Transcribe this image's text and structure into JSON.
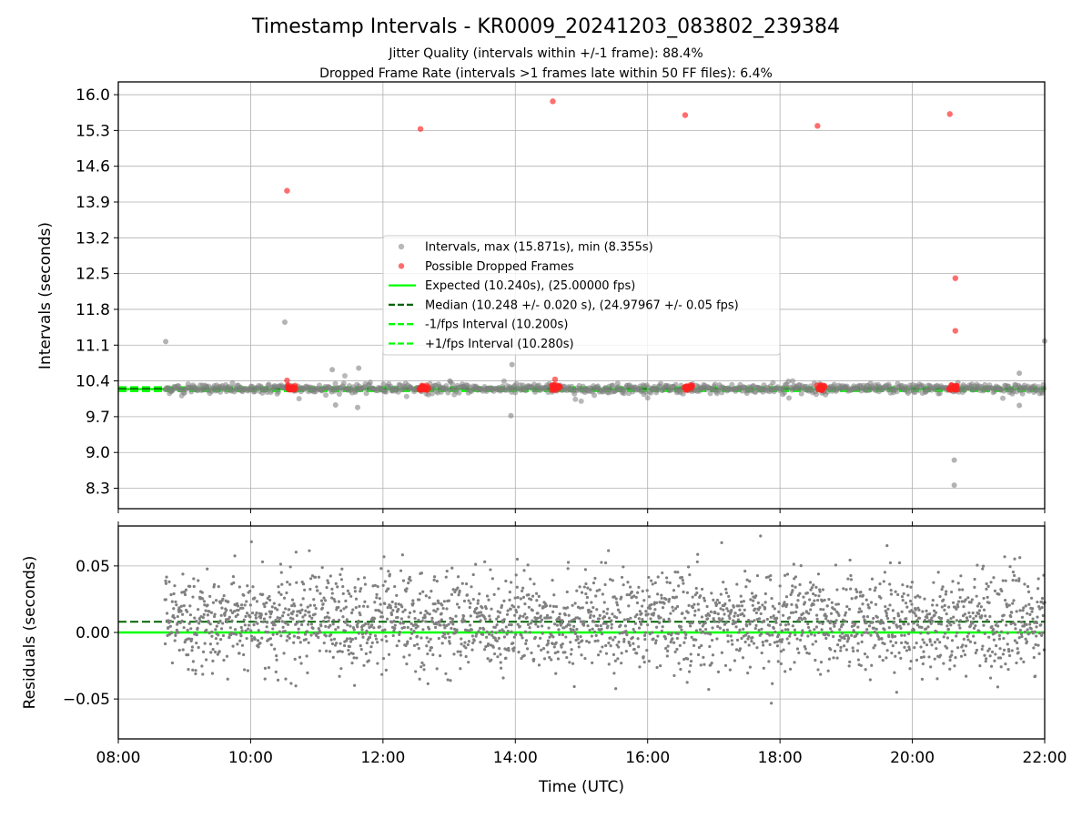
{
  "figure": {
    "title": "Timestamp Intervals - KR0009_20241203_083802_239384",
    "subtitle_1": "Jitter Quality (intervals within +/-1 frame): 88.4%",
    "subtitle_2": "Dropped Frame Rate (intervals >1 frames late within 50 FF files): 6.4%"
  },
  "chart_data": [
    {
      "type": "scatter",
      "panel": "intervals",
      "ylabel": "Intervals (seconds)",
      "xlim": [
        "08:00",
        "22:00"
      ],
      "ylim": [
        7.9,
        16.25
      ],
      "yticks": [
        "8.3",
        "9.0",
        "9.7",
        "10.4",
        "11.1",
        "11.8",
        "12.5",
        "13.2",
        "13.9",
        "14.6",
        "15.3",
        "16.0"
      ],
      "ytick_values": [
        8.3,
        9.0,
        9.7,
        10.4,
        11.1,
        11.8,
        12.5,
        13.2,
        13.9,
        14.6,
        15.3,
        16.0
      ],
      "xticks": [
        "08:00",
        "10:00",
        "12:00",
        "14:00",
        "16:00",
        "18:00",
        "20:00",
        "22:00"
      ],
      "grid": true,
      "legend_position": "center",
      "series": [
        {
          "name": "Intervals, max (15.871s), min (8.355s)",
          "kind": "scatter",
          "color": "#808080",
          "typical_value": 10.248,
          "time_range": [
            "08:42",
            "22:00"
          ],
          "notable_points": [
            {
              "x": "08:43",
              "y": 11.17
            },
            {
              "x": "10:31",
              "y": 11.55
            },
            {
              "x": "13:57",
              "y": 10.72
            },
            {
              "x": "13:56",
              "y": 9.72
            },
            {
              "x": "11:14",
              "y": 10.62
            },
            {
              "x": "11:38",
              "y": 10.65
            },
            {
              "x": "11:37",
              "y": 9.88
            },
            {
              "x": "11:17",
              "y": 9.93
            },
            {
              "x": "20:38",
              "y": 8.85
            },
            {
              "x": "20:38",
              "y": 8.36
            },
            {
              "x": "21:37",
              "y": 9.92
            },
            {
              "x": "21:37",
              "y": 10.55
            },
            {
              "x": "22:00",
              "y": 11.18
            }
          ]
        },
        {
          "name": "Possible Dropped Frames",
          "kind": "scatter",
          "color": "#ff2020",
          "points": [
            {
              "x": "10:33",
              "y": 14.12
            },
            {
              "x": "12:34",
              "y": 15.33
            },
            {
              "x": "14:34",
              "y": 15.87
            },
            {
              "x": "16:34",
              "y": 15.6
            },
            {
              "x": "18:34",
              "y": 15.39
            },
            {
              "x": "20:34",
              "y": 15.62
            },
            {
              "x": "20:39",
              "y": 12.41
            },
            {
              "x": "20:39",
              "y": 11.38
            },
            {
              "x": "10:33",
              "y": 10.41
            },
            {
              "x": "14:36",
              "y": 10.43
            }
          ],
          "clusters": [
            "10:37",
            "12:37",
            "14:37",
            "16:37",
            "18:37",
            "20:37"
          ],
          "cluster_value": 10.27
        },
        {
          "name": "Expected (10.240s), (25.00000 fps)",
          "kind": "hline",
          "value": 10.24,
          "color": "#00ff00",
          "style": "solid"
        },
        {
          "name": "Median (10.248 +/- 0.020 s), (24.97967 +/- 0.05 fps)",
          "kind": "hline",
          "value": 10.248,
          "color": "#006400",
          "style": "dashed"
        },
        {
          "name": "-1/fps Interval (10.200s)",
          "kind": "hline",
          "value": 10.2,
          "color": "#00ff00",
          "style": "dashed"
        },
        {
          "name": "+1/fps Interval (10.280s)",
          "kind": "hline",
          "value": 10.28,
          "color": "#00ff00",
          "style": "dashed"
        }
      ]
    },
    {
      "type": "scatter",
      "panel": "residuals",
      "ylabel": "Residuals (seconds)",
      "xlabel": "Time (UTC)",
      "xlim": [
        "08:00",
        "22:00"
      ],
      "ylim": [
        -0.08,
        0.08
      ],
      "yticks": [
        "−0.05",
        "0.00",
        "0.05"
      ],
      "ytick_values": [
        -0.05,
        0.0,
        0.05
      ],
      "xticks": [
        "08:00",
        "10:00",
        "12:00",
        "14:00",
        "16:00",
        "18:00",
        "20:00",
        "22:00"
      ],
      "grid": true,
      "series": [
        {
          "name": "",
          "kind": "scatter",
          "color": "#808080",
          "center": 0.008,
          "spread": 0.025,
          "time_range": [
            "08:42",
            "22:00"
          ]
        },
        {
          "name": "",
          "kind": "hline",
          "value": 0.0,
          "color": "#00ff00",
          "style": "solid"
        },
        {
          "name": "",
          "kind": "hline",
          "value": 0.008,
          "color": "#006400",
          "style": "dashed"
        }
      ]
    }
  ]
}
